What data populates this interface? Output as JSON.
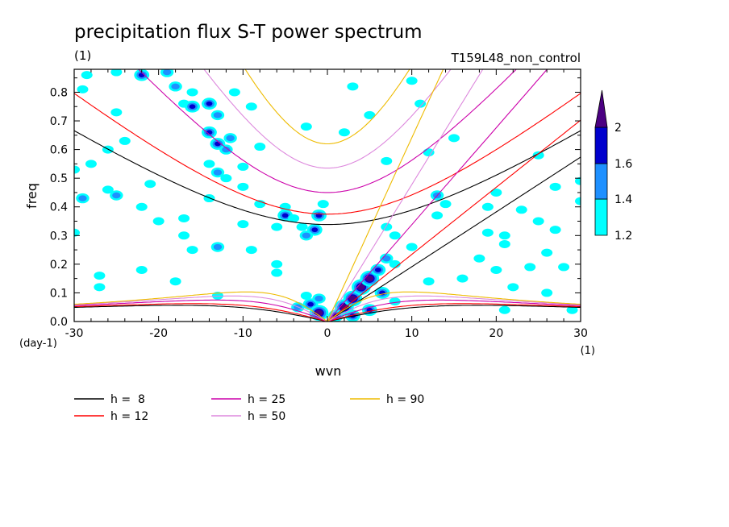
{
  "chart_data": {
    "type": "contour",
    "title": "precipitation flux S-T power spectrum",
    "units_top_left": "(1)",
    "run_label": "T159L48_non_control",
    "xlabel": "wvn",
    "ylabel": "freq",
    "x_units": "(1)",
    "y_units": "(day-1)",
    "xlim": [
      -30,
      30
    ],
    "ylim": [
      0,
      0.88
    ],
    "x_ticks": [
      -30,
      -20,
      -10,
      0,
      10,
      20,
      30
    ],
    "x_tick_labels": [
      "-30",
      "-20",
      "-10",
      "0",
      "10",
      "20",
      "30"
    ],
    "y_ticks": [
      0,
      0.1,
      0.2,
      0.3,
      0.4,
      0.5,
      0.6,
      0.7,
      0.8
    ],
    "y_tick_labels": [
      "0.0",
      "0.1",
      "0.2",
      "0.3",
      "0.4",
      "0.5",
      "0.6",
      "0.7",
      "0.8"
    ],
    "colorbar": {
      "levels": [
        1.2,
        1.4,
        1.6,
        2
      ],
      "labels": [
        "1.2",
        "1.4",
        "1.6",
        "2"
      ],
      "colors": [
        "#00ffff",
        "#1e90ff",
        "#0000cd",
        "#4b0082"
      ]
    },
    "dispersion_curves": [
      {
        "h": 8,
        "label": "h =  8",
        "color": "#000000"
      },
      {
        "h": 12,
        "label": "h = 12",
        "color": "#ff0000"
      },
      {
        "h": 25,
        "label": "h = 25",
        "color": "#cc00aa"
      },
      {
        "h": 50,
        "label": "h = 50",
        "color": "#dd88dd"
      },
      {
        "h": 90,
        "label": "h = 90",
        "color": "#eebb00"
      }
    ],
    "power_blobs": [
      {
        "k": -28.5,
        "f": 0.86,
        "level": 1.2
      },
      {
        "k": -25,
        "f": 0.87,
        "level": 1.2
      },
      {
        "k": -22,
        "f": 0.86,
        "level": 1.6
      },
      {
        "k": -19,
        "f": 0.87,
        "level": 1.4
      },
      {
        "k": -18,
        "f": 0.82,
        "level": 1.4
      },
      {
        "k": -16,
        "f": 0.8,
        "level": 1.2
      },
      {
        "k": -17,
        "f": 0.76,
        "level": 1.2
      },
      {
        "k": -16,
        "f": 0.75,
        "level": 1.6
      },
      {
        "k": -14,
        "f": 0.76,
        "level": 1.6
      },
      {
        "k": -13,
        "f": 0.72,
        "level": 1.4
      },
      {
        "k": -11,
        "f": 0.8,
        "level": 1.2
      },
      {
        "k": -9,
        "f": 0.75,
        "level": 1.2
      },
      {
        "k": -14,
        "f": 0.66,
        "level": 1.6
      },
      {
        "k": -13,
        "f": 0.62,
        "level": 1.6
      },
      {
        "k": -12,
        "f": 0.6,
        "level": 1.4
      },
      {
        "k": -11.5,
        "f": 0.64,
        "level": 1.4
      },
      {
        "k": -14,
        "f": 0.55,
        "level": 1.2
      },
      {
        "k": -13,
        "f": 0.52,
        "level": 1.4
      },
      {
        "k": -12,
        "f": 0.5,
        "level": 1.2
      },
      {
        "k": -10,
        "f": 0.54,
        "level": 1.2
      },
      {
        "k": -25,
        "f": 0.73,
        "level": 1.2
      },
      {
        "k": -24,
        "f": 0.63,
        "level": 1.2
      },
      {
        "k": -26,
        "f": 0.6,
        "level": 1.2
      },
      {
        "k": -28,
        "f": 0.55,
        "level": 1.2
      },
      {
        "k": -30,
        "f": 0.53,
        "level": 1.2
      },
      {
        "k": -26,
        "f": 0.46,
        "level": 1.2
      },
      {
        "k": -25,
        "f": 0.44,
        "level": 1.4
      },
      {
        "k": -21,
        "f": 0.48,
        "level": 1.2
      },
      {
        "k": -29,
        "f": 0.43,
        "level": 1.4
      },
      {
        "k": -22,
        "f": 0.4,
        "level": 1.2
      },
      {
        "k": -20,
        "f": 0.35,
        "level": 1.2
      },
      {
        "k": -17,
        "f": 0.36,
        "level": 1.2
      },
      {
        "k": -17,
        "f": 0.3,
        "level": 1.2
      },
      {
        "k": -16,
        "f": 0.25,
        "level": 1.2
      },
      {
        "k": -13,
        "f": 0.26,
        "level": 1.4
      },
      {
        "k": -9,
        "f": 0.25,
        "level": 1.2
      },
      {
        "k": -10,
        "f": 0.34,
        "level": 1.2
      },
      {
        "k": -14,
        "f": 0.43,
        "level": 1.2
      },
      {
        "k": -10,
        "f": 0.47,
        "level": 1.2
      },
      {
        "k": -8,
        "f": 0.41,
        "level": 1.2
      },
      {
        "k": -6,
        "f": 0.33,
        "level": 1.2
      },
      {
        "k": -5,
        "f": 0.4,
        "level": 1.2
      },
      {
        "k": -5,
        "f": 0.37,
        "level": 1.6
      },
      {
        "k": -4,
        "f": 0.36,
        "level": 1.2
      },
      {
        "k": -1,
        "f": 0.37,
        "level": 1.6
      },
      {
        "k": -1.5,
        "f": 0.32,
        "level": 1.6
      },
      {
        "k": -2.5,
        "f": 0.3,
        "level": 1.4
      },
      {
        "k": -3,
        "f": 0.33,
        "level": 1.2
      },
      {
        "k": -0.5,
        "f": 0.41,
        "level": 1.2
      },
      {
        "k": -6,
        "f": 0.17,
        "level": 1.2
      },
      {
        "k": -22,
        "f": 0.18,
        "level": 1.2
      },
      {
        "k": -27,
        "f": 0.12,
        "level": 1.2
      },
      {
        "k": -30,
        "f": 0.31,
        "level": 1.2
      },
      {
        "k": -2,
        "f": 0.06,
        "level": 1.6
      },
      {
        "k": -1,
        "f": 0.03,
        "level": 2.0
      },
      {
        "k": -3.5,
        "f": 0.05,
        "level": 1.4
      },
      {
        "k": -2.5,
        "f": 0.09,
        "level": 1.2
      },
      {
        "k": -1,
        "f": 0.08,
        "level": 1.4
      },
      {
        "k": 2,
        "f": 0.05,
        "level": 2.0
      },
      {
        "k": 3,
        "f": 0.08,
        "level": 2.0
      },
      {
        "k": 4,
        "f": 0.12,
        "level": 2.0
      },
      {
        "k": 5,
        "f": 0.15,
        "level": 2.0
      },
      {
        "k": 6,
        "f": 0.18,
        "level": 1.6
      },
      {
        "k": 6.5,
        "f": 0.1,
        "level": 1.6
      },
      {
        "k": 5,
        "f": 0.04,
        "level": 1.6
      },
      {
        "k": 7,
        "f": 0.22,
        "level": 1.4
      },
      {
        "k": 8,
        "f": 0.2,
        "level": 1.2
      },
      {
        "k": 8,
        "f": 0.07,
        "level": 1.2
      },
      {
        "k": 3,
        "f": 0.02,
        "level": 1.6
      },
      {
        "k": 1,
        "f": 0.02,
        "level": 1.6
      },
      {
        "k": 5,
        "f": 0.72,
        "level": 1.2
      },
      {
        "k": 2,
        "f": 0.66,
        "level": 1.2
      },
      {
        "k": 7,
        "f": 0.56,
        "level": 1.2
      },
      {
        "k": -2.5,
        "f": 0.68,
        "level": 1.2
      },
      {
        "k": 12,
        "f": 0.59,
        "level": 1.2
      },
      {
        "k": 13,
        "f": 0.44,
        "level": 1.4
      },
      {
        "k": 14,
        "f": 0.41,
        "level": 1.2
      },
      {
        "k": 7,
        "f": 0.33,
        "level": 1.2
      },
      {
        "k": 8,
        "f": 0.3,
        "level": 1.2
      },
      {
        "k": 10,
        "f": 0.26,
        "level": 1.2
      },
      {
        "k": 13,
        "f": 0.37,
        "level": 1.2
      },
      {
        "k": 19,
        "f": 0.4,
        "level": 1.2
      },
      {
        "k": 20,
        "f": 0.45,
        "level": 1.2
      },
      {
        "k": 23,
        "f": 0.39,
        "level": 1.2
      },
      {
        "k": 27,
        "f": 0.47,
        "level": 1.2
      },
      {
        "k": 19,
        "f": 0.31,
        "level": 1.2
      },
      {
        "k": 21,
        "f": 0.3,
        "level": 1.2
      },
      {
        "k": 25,
        "f": 0.35,
        "level": 1.2
      },
      {
        "k": 27,
        "f": 0.32,
        "level": 1.2
      },
      {
        "k": 30,
        "f": 0.42,
        "level": 1.2
      },
      {
        "k": 30,
        "f": 0.49,
        "level": 1.2
      },
      {
        "k": 21,
        "f": 0.27,
        "level": 1.2
      },
      {
        "k": 26,
        "f": 0.24,
        "level": 1.2
      },
      {
        "k": 18,
        "f": 0.22,
        "level": 1.2
      },
      {
        "k": 20,
        "f": 0.18,
        "level": 1.2
      },
      {
        "k": 24,
        "f": 0.19,
        "level": 1.2
      },
      {
        "k": 28,
        "f": 0.19,
        "level": 1.2
      },
      {
        "k": 22,
        "f": 0.12,
        "level": 1.2
      },
      {
        "k": 26,
        "f": 0.1,
        "level": 1.2
      },
      {
        "k": 29,
        "f": 0.04,
        "level": 1.2
      },
      {
        "k": 12,
        "f": 0.14,
        "level": 1.2
      },
      {
        "k": 16,
        "f": 0.15,
        "level": 1.2
      },
      {
        "k": 11,
        "f": 0.76,
        "level": 1.2
      },
      {
        "k": 3,
        "f": 0.82,
        "level": 1.2
      },
      {
        "k": -8,
        "f": 0.61,
        "level": 1.2
      },
      {
        "k": -6,
        "f": 0.2,
        "level": 1.2
      },
      {
        "k": -13,
        "f": 0.09,
        "level": 1.2
      },
      {
        "k": -18,
        "f": 0.14,
        "level": 1.2
      },
      {
        "k": -27,
        "f": 0.16,
        "level": 1.2
      },
      {
        "k": -29,
        "f": 0.81,
        "level": 1.2
      },
      {
        "k": 10,
        "f": 0.84,
        "level": 1.2
      },
      {
        "k": 15,
        "f": 0.64,
        "level": 1.2
      },
      {
        "k": 25,
        "f": 0.58,
        "level": 1.2
      },
      {
        "k": 21,
        "f": 0.04,
        "level": 1.2
      }
    ]
  }
}
